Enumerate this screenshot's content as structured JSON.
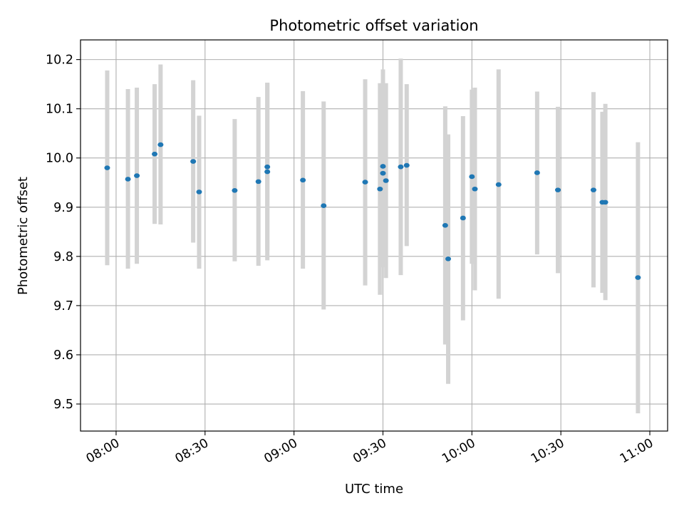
{
  "chart_data": {
    "type": "scatter",
    "title": "Photometric offset variation",
    "xlabel": "UTC time",
    "ylabel": "Photometric offset",
    "x_tick_labels": [
      "08:00",
      "08:30",
      "09:00",
      "09:30",
      "10:00",
      "10:30",
      "11:00"
    ],
    "y_tick_labels": [
      "9.5",
      "9.6",
      "9.7",
      "9.8",
      "9.9",
      "10.0",
      "10.1",
      "10.2"
    ],
    "x_ticks": [
      "08:00",
      "08:30",
      "09:00",
      "09:30",
      "10:00",
      "10:30",
      "11:00"
    ],
    "y_ticks": [
      9.5,
      9.6,
      9.7,
      9.8,
      9.9,
      10.0,
      10.1,
      10.2
    ],
    "xlim": [
      "07:48",
      "11:06"
    ],
    "ylim": [
      9.445,
      10.24
    ],
    "grid": true,
    "marker_color": "#1f77b4",
    "errorbar_color": "#d3d3d3",
    "points": [
      {
        "x": "07:57",
        "y": 9.98,
        "ylo": 9.782,
        "yhi": 10.178
      },
      {
        "x": "08:04",
        "y": 9.957,
        "ylo": 9.775,
        "yhi": 10.14
      },
      {
        "x": "08:07",
        "y": 9.964,
        "ylo": 9.785,
        "yhi": 10.143
      },
      {
        "x": "08:13",
        "y": 10.008,
        "ylo": 9.866,
        "yhi": 10.15
      },
      {
        "x": "08:15",
        "y": 10.027,
        "ylo": 9.865,
        "yhi": 10.19
      },
      {
        "x": "08:26",
        "y": 9.993,
        "ylo": 9.828,
        "yhi": 10.158
      },
      {
        "x": "08:28",
        "y": 9.931,
        "ylo": 9.775,
        "yhi": 10.086
      },
      {
        "x": "08:40",
        "y": 9.934,
        "ylo": 9.79,
        "yhi": 10.079
      },
      {
        "x": "08:48",
        "y": 9.952,
        "ylo": 9.781,
        "yhi": 10.124
      },
      {
        "x": "08:51",
        "y": 9.982,
        "ylo": 9.812,
        "yhi": 10.153
      },
      {
        "x": "08:51",
        "y": 9.972,
        "ylo": 9.792,
        "yhi": 10.153
      },
      {
        "x": "09:03",
        "y": 9.955,
        "ylo": 9.775,
        "yhi": 10.136
      },
      {
        "x": "09:10",
        "y": 9.903,
        "ylo": 9.692,
        "yhi": 10.115
      },
      {
        "x": "09:24",
        "y": 9.951,
        "ylo": 9.741,
        "yhi": 10.16
      },
      {
        "x": "09:29",
        "y": 9.937,
        "ylo": 9.722,
        "yhi": 10.152
      },
      {
        "x": "09:30",
        "y": 9.969,
        "ylo": 9.778,
        "yhi": 10.16
      },
      {
        "x": "09:30",
        "y": 9.983,
        "ylo": 9.788,
        "yhi": 10.18
      },
      {
        "x": "09:31",
        "y": 9.954,
        "ylo": 9.756,
        "yhi": 10.152
      },
      {
        "x": "09:36",
        "y": 9.982,
        "ylo": 9.762,
        "yhi": 10.202
      },
      {
        "x": "09:38",
        "y": 9.985,
        "ylo": 9.821,
        "yhi": 10.15
      },
      {
        "x": "09:51",
        "y": 9.863,
        "ylo": 9.621,
        "yhi": 10.105
      },
      {
        "x": "09:52",
        "y": 9.795,
        "ylo": 9.541,
        "yhi": 10.048
      },
      {
        "x": "09:57",
        "y": 9.878,
        "ylo": 9.67,
        "yhi": 10.085
      },
      {
        "x": "10:00",
        "y": 9.962,
        "ylo": 9.785,
        "yhi": 10.139
      },
      {
        "x": "10:01",
        "y": 9.937,
        "ylo": 9.731,
        "yhi": 10.143
      },
      {
        "x": "10:09",
        "y": 9.946,
        "ylo": 9.714,
        "yhi": 10.18
      },
      {
        "x": "10:22",
        "y": 9.97,
        "ylo": 9.804,
        "yhi": 10.135
      },
      {
        "x": "10:29",
        "y": 9.935,
        "ylo": 9.766,
        "yhi": 10.104
      },
      {
        "x": "10:41",
        "y": 9.935,
        "ylo": 9.737,
        "yhi": 10.134
      },
      {
        "x": "10:45",
        "y": 9.91,
        "ylo": 9.711,
        "yhi": 10.11
      },
      {
        "x": "10:44",
        "y": 9.91,
        "ylo": 9.726,
        "yhi": 10.094
      },
      {
        "x": "10:56",
        "y": 9.757,
        "ylo": 9.481,
        "yhi": 10.032
      }
    ]
  }
}
